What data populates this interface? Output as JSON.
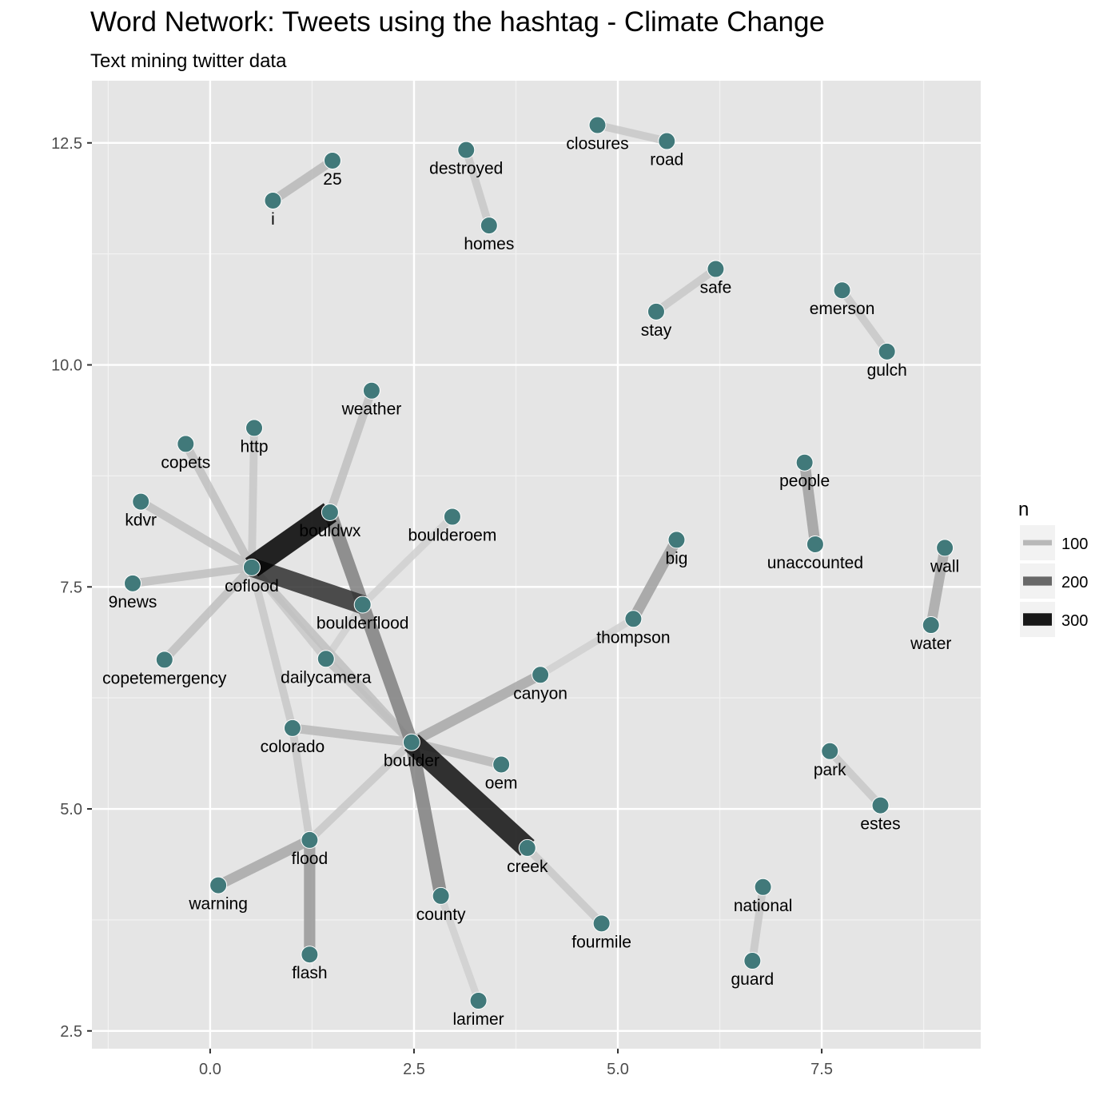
{
  "chart_data": {
    "type": "network",
    "title": "Word Network: Tweets using the hashtag - Climate Change",
    "subtitle": "Text mining twitter data",
    "xlabel": "",
    "ylabel": "",
    "xlim": [
      -1.45,
      9.45
    ],
    "ylim": [
      2.3,
      13.2
    ],
    "x_ticks": [
      0.0,
      2.5,
      5.0,
      7.5
    ],
    "x_tick_labels": [
      "0.0",
      "2.5",
      "5.0",
      "7.5"
    ],
    "y_ticks": [
      2.5,
      5.0,
      7.5,
      10.0,
      12.5
    ],
    "y_tick_labels": [
      "2.5",
      "5.0",
      "7.5",
      "10.0",
      "12.5"
    ],
    "grid": true,
    "colors": {
      "panel": "#e5e5e5",
      "grid_major": "#ffffff",
      "node": "#41797a",
      "node_outline": "#ffffff"
    },
    "nodes": [
      {
        "id": "i",
        "x": 0.77,
        "y": 11.85
      },
      {
        "id": "25",
        "x": 1.5,
        "y": 12.3
      },
      {
        "id": "destroyed",
        "x": 3.14,
        "y": 12.42
      },
      {
        "id": "homes",
        "x": 3.42,
        "y": 11.57
      },
      {
        "id": "closures",
        "x": 4.75,
        "y": 12.7
      },
      {
        "id": "road",
        "x": 5.6,
        "y": 12.52
      },
      {
        "id": "safe",
        "x": 6.2,
        "y": 11.08
      },
      {
        "id": "stay",
        "x": 5.47,
        "y": 10.6
      },
      {
        "id": "emerson",
        "x": 7.75,
        "y": 10.84
      },
      {
        "id": "gulch",
        "x": 8.3,
        "y": 10.15
      },
      {
        "id": "weather",
        "x": 1.98,
        "y": 9.71
      },
      {
        "id": "http",
        "x": 0.54,
        "y": 9.29
      },
      {
        "id": "copets",
        "x": -0.3,
        "y": 9.11
      },
      {
        "id": "kdvr",
        "x": -0.85,
        "y": 8.46
      },
      {
        "id": "bouldwx",
        "x": 1.47,
        "y": 8.34
      },
      {
        "id": "boulderoem",
        "x": 2.97,
        "y": 8.29
      },
      {
        "id": "9news",
        "x": -0.95,
        "y": 7.54
      },
      {
        "id": "coflood",
        "x": 0.51,
        "y": 7.72
      },
      {
        "id": "boulderflood",
        "x": 1.87,
        "y": 7.3
      },
      {
        "id": "copetemergency",
        "x": -0.56,
        "y": 6.68
      },
      {
        "id": "dailycamera",
        "x": 1.42,
        "y": 6.69
      },
      {
        "id": "people",
        "x": 7.29,
        "y": 8.9
      },
      {
        "id": "unaccounted",
        "x": 7.42,
        "y": 7.98
      },
      {
        "id": "big",
        "x": 5.72,
        "y": 8.03
      },
      {
        "id": "thompson",
        "x": 5.19,
        "y": 7.14
      },
      {
        "id": "wall",
        "x": 9.01,
        "y": 7.94
      },
      {
        "id": "water",
        "x": 8.84,
        "y": 7.07
      },
      {
        "id": "canyon",
        "x": 4.05,
        "y": 6.51
      },
      {
        "id": "colorado",
        "x": 1.01,
        "y": 5.91
      },
      {
        "id": "boulder",
        "x": 2.47,
        "y": 5.75
      },
      {
        "id": "oem",
        "x": 3.57,
        "y": 5.5
      },
      {
        "id": "park",
        "x": 7.6,
        "y": 5.65
      },
      {
        "id": "estes",
        "x": 8.22,
        "y": 5.04
      },
      {
        "id": "flood",
        "x": 1.22,
        "y": 4.65
      },
      {
        "id": "creek",
        "x": 3.89,
        "y": 4.56
      },
      {
        "id": "warning",
        "x": 0.1,
        "y": 4.14
      },
      {
        "id": "national",
        "x": 6.78,
        "y": 4.12
      },
      {
        "id": "county",
        "x": 2.83,
        "y": 4.02
      },
      {
        "id": "fourmile",
        "x": 4.8,
        "y": 3.71
      },
      {
        "id": "flash",
        "x": 1.22,
        "y": 3.36
      },
      {
        "id": "guard",
        "x": 6.65,
        "y": 3.29
      },
      {
        "id": "larimer",
        "x": 3.29,
        "y": 2.84
      }
    ],
    "edges": [
      {
        "from": "i",
        "to": "25",
        "n": 100
      },
      {
        "from": "destroyed",
        "to": "homes",
        "n": 80
      },
      {
        "from": "closures",
        "to": "road",
        "n": 80
      },
      {
        "from": "stay",
        "to": "safe",
        "n": 80
      },
      {
        "from": "emerson",
        "to": "gulch",
        "n": 80
      },
      {
        "from": "coflood",
        "to": "bouldwx",
        "n": 330
      },
      {
        "from": "coflood",
        "to": "boulderflood",
        "n": 270
      },
      {
        "from": "coflood",
        "to": "http",
        "n": 80
      },
      {
        "from": "coflood",
        "to": "copets",
        "n": 90
      },
      {
        "from": "coflood",
        "to": "kdvr",
        "n": 90
      },
      {
        "from": "coflood",
        "to": "9news",
        "n": 90
      },
      {
        "from": "coflood",
        "to": "copetemergency",
        "n": 90
      },
      {
        "from": "coflood",
        "to": "colorado",
        "n": 80
      },
      {
        "from": "coflood",
        "to": "dailycamera",
        "n": 80
      },
      {
        "from": "coflood",
        "to": "boulder",
        "n": 90
      },
      {
        "from": "bouldwx",
        "to": "weather",
        "n": 90
      },
      {
        "from": "bouldwx",
        "to": "boulder",
        "n": 170
      },
      {
        "from": "boulderflood",
        "to": "boulderoem",
        "n": 70
      },
      {
        "from": "boulderflood",
        "to": "dailycamera",
        "n": 70
      },
      {
        "from": "boulder",
        "to": "creek",
        "n": 310
      },
      {
        "from": "boulder",
        "to": "county",
        "n": 170
      },
      {
        "from": "boulder",
        "to": "canyon",
        "n": 120
      },
      {
        "from": "boulder",
        "to": "colorado",
        "n": 100
      },
      {
        "from": "boulder",
        "to": "oem",
        "n": 100
      },
      {
        "from": "boulder",
        "to": "dailycamera",
        "n": 90
      },
      {
        "from": "boulder",
        "to": "flood",
        "n": 80
      },
      {
        "from": "canyon",
        "to": "thompson",
        "n": 70
      },
      {
        "from": "thompson",
        "to": "big",
        "n": 130
      },
      {
        "from": "people",
        "to": "unaccounted",
        "n": 130
      },
      {
        "from": "water",
        "to": "wall",
        "n": 120
      },
      {
        "from": "park",
        "to": "estes",
        "n": 80
      },
      {
        "from": "flood",
        "to": "warning",
        "n": 120
      },
      {
        "from": "flood",
        "to": "flash",
        "n": 140
      },
      {
        "from": "colorado",
        "to": "flood",
        "n": 80
      },
      {
        "from": "county",
        "to": "larimer",
        "n": 70
      },
      {
        "from": "creek",
        "to": "fourmile",
        "n": 80
      },
      {
        "from": "national",
        "to": "guard",
        "n": 80
      }
    ],
    "legend": {
      "title": "n",
      "position": "right",
      "items": [
        {
          "label": "100",
          "n": 100
        },
        {
          "label": "200",
          "n": 200
        },
        {
          "label": "300",
          "n": 300
        }
      ]
    }
  }
}
